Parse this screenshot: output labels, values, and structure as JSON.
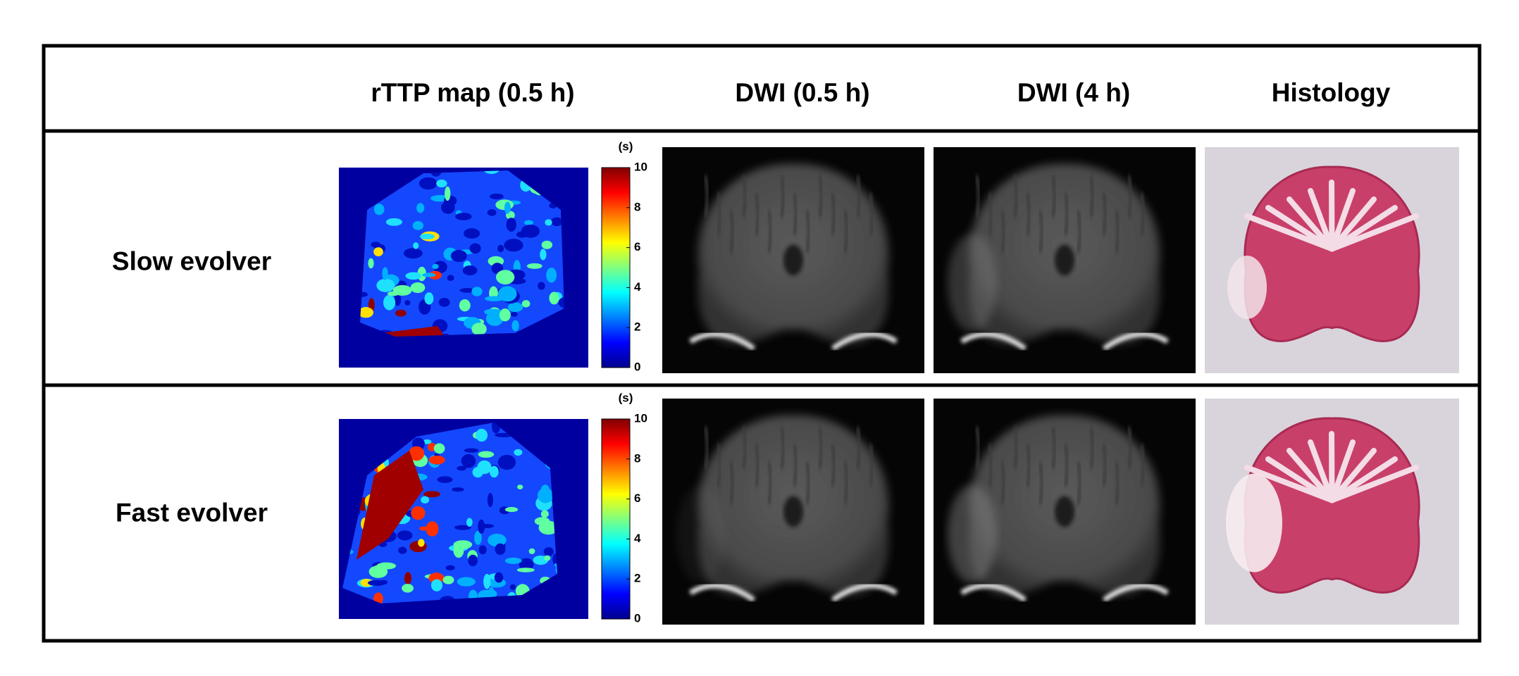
{
  "header": {
    "columns": [
      "rTTP map (0.5 h)",
      "DWI (0.5 h)",
      "DWI (4 h)",
      "Histology"
    ]
  },
  "rows": [
    {
      "label": "Slow evolver",
      "colorbar": {
        "unit": "(s)",
        "ticks": [
          0,
          2,
          4,
          6,
          8,
          10
        ]
      }
    },
    {
      "label": "Fast evolver",
      "colorbar": {
        "unit": "(s)",
        "ticks": [
          0,
          2,
          4,
          6,
          8,
          10
        ]
      }
    }
  ]
}
